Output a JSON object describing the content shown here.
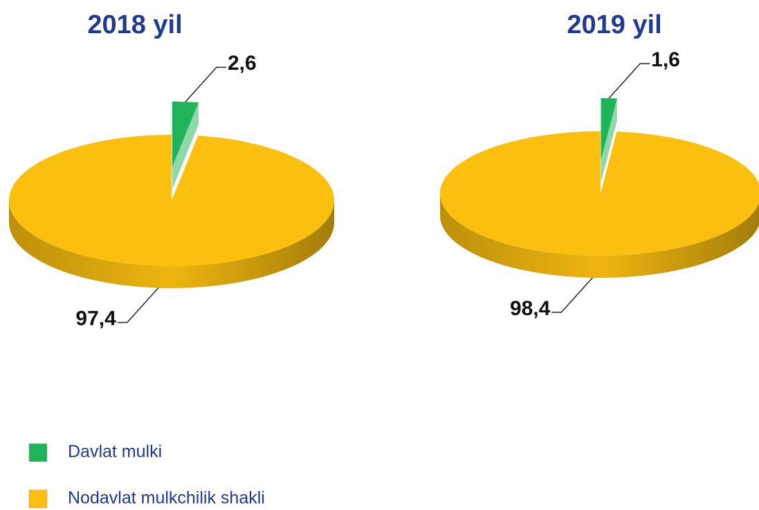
{
  "chart_data": [
    {
      "type": "pie",
      "title": "2018 yil",
      "categories": [
        "Davlat mulki",
        "Nodavlat mulkchilik shakli"
      ],
      "values": [
        2.6,
        97.4
      ],
      "value_labels": [
        "2,6",
        "97,4"
      ],
      "colors": [
        "#1fb45a",
        "#fbbf10"
      ]
    },
    {
      "type": "pie",
      "title": "2019 yil",
      "values": [
        1.6,
        98.4
      ],
      "value_labels": [
        "1,6",
        "98,4"
      ],
      "colors": [
        "#1fb45a",
        "#fbbf10"
      ]
    }
  ]
}
